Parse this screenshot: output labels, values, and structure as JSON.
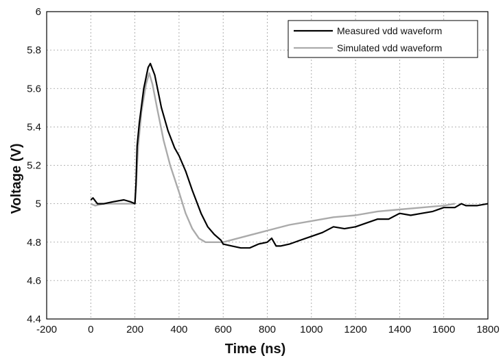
{
  "chart_data": {
    "type": "line",
    "title": "",
    "xlabel": "Time (ns)",
    "ylabel": "Voltage  (V)",
    "xlim": [
      -200,
      1800
    ],
    "ylim": [
      4.4,
      6
    ],
    "xticks": [
      -200,
      0,
      200,
      400,
      600,
      800,
      1000,
      1200,
      1400,
      1600,
      1800
    ],
    "yticks": [
      4.4,
      4.6,
      4.8,
      5,
      5.2,
      5.4,
      5.6,
      5.8,
      6
    ],
    "xtick_labels": [
      "-200",
      "0",
      "200",
      "400",
      "600",
      "800",
      "1000",
      "1200",
      "1400",
      "1600",
      "1800"
    ],
    "ytick_labels": [
      "4.4",
      "4.6",
      "4.8",
      "5",
      "5.2",
      "5.4",
      "5.6",
      "5.8",
      "6"
    ],
    "grid": true,
    "legend_position": "top-right",
    "series": [
      {
        "name": "Measured vdd waveform",
        "color": "#000000",
        "x": [
          0,
          10,
          30,
          60,
          100,
          150,
          180,
          200,
          205,
          210,
          220,
          240,
          260,
          270,
          290,
          320,
          350,
          380,
          400,
          430,
          460,
          500,
          530,
          560,
          590,
          600,
          640,
          680,
          720,
          760,
          800,
          820,
          840,
          860,
          900,
          950,
          1000,
          1050,
          1100,
          1150,
          1200,
          1250,
          1300,
          1350,
          1400,
          1450,
          1500,
          1550,
          1600,
          1650,
          1680,
          1700,
          1750,
          1800
        ],
        "y": [
          5.02,
          5.03,
          5.0,
          5.0,
          5.01,
          5.02,
          5.01,
          5.0,
          5.1,
          5.3,
          5.42,
          5.6,
          5.71,
          5.73,
          5.67,
          5.5,
          5.38,
          5.29,
          5.25,
          5.17,
          5.07,
          4.95,
          4.88,
          4.84,
          4.81,
          4.79,
          4.78,
          4.77,
          4.77,
          4.79,
          4.8,
          4.82,
          4.78,
          4.78,
          4.79,
          4.81,
          4.83,
          4.85,
          4.88,
          4.87,
          4.88,
          4.9,
          4.92,
          4.92,
          4.95,
          4.94,
          4.95,
          4.96,
          4.98,
          4.98,
          5.0,
          4.99,
          4.99,
          5.0
        ]
      },
      {
        "name": "Simulated vdd waveform",
        "color": "#aaaaaa",
        "x": [
          0,
          20,
          60,
          100,
          150,
          200,
          205,
          215,
          230,
          250,
          265,
          280,
          300,
          330,
          360,
          400,
          430,
          460,
          490,
          520,
          550,
          580,
          600,
          700,
          800,
          900,
          1000,
          1100,
          1200,
          1300,
          1400,
          1500,
          1600,
          1650
        ],
        "y": [
          5.0,
          4.99,
          5.0,
          5.0,
          5.0,
          5.0,
          5.1,
          5.3,
          5.48,
          5.62,
          5.68,
          5.62,
          5.5,
          5.33,
          5.2,
          5.06,
          4.95,
          4.87,
          4.82,
          4.8,
          4.8,
          4.8,
          4.8,
          4.83,
          4.86,
          4.89,
          4.91,
          4.93,
          4.94,
          4.96,
          4.97,
          4.98,
          4.99,
          5.0
        ]
      }
    ]
  }
}
